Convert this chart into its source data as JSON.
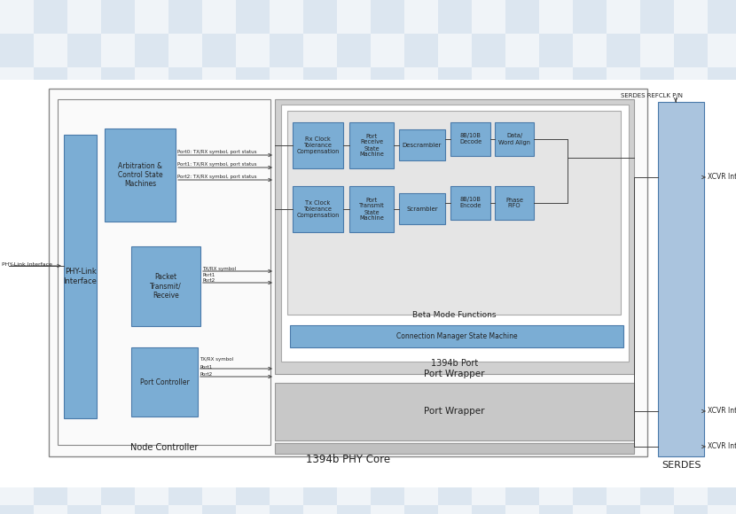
{
  "bg_checker_color1": "#dce6f0",
  "bg_checker_color2": "#f0f4f8",
  "box_blue_fill": "#7badd4",
  "box_blue_edge": "#4a7aaa",
  "box_light_blue_fill": "#b8d0e8",
  "box_gray_fill": "#d0d0d0",
  "box_gray2_fill": "#c8c8c8",
  "box_white_fill": "#ffffff",
  "serdes_fill": "#aac4de",
  "text_color": "#222222",
  "line_color": "#444444",
  "main_outer_label": "1394b PHY Core",
  "node_ctrl_label": "Node Controller",
  "phy_link_label": "PHY-Link\nInterface",
  "arb_label": "Arbitration &\nControl State\nMachines",
  "packet_label": "Packet\nTransmit/\nReceive",
  "port_ctrl_label": "Port Controller",
  "port_wrapper_label": "Port Wrapper",
  "beta_label": "Beta Mode Functions",
  "port_1394b_label": "1394b Port",
  "conn_mgr_label": "Connection Manager State Machine",
  "rx_clock_label": "Rx Clock\nTolerance\nCompensation",
  "port_receive_label": "Port\nReceive\nState\nMachine",
  "descrambler_label": "Descrambler",
  "bb10b_decode_label": "8B/10B\nDecode",
  "data_word_label": "Data/\nWord Align",
  "tx_clock_label": "Tx Clock\nTolerance\nCompensation",
  "port_transmit_label": "Port\nTransmit\nState\nMachine",
  "scrambler_label": "Scrambler",
  "bb10b_encode_label": "8B/10B\nEncode",
  "phase_fifo_label": "Phase\nFIFO",
  "serdes_label": "SERDES",
  "serdes_refclk_label": "SERDES REFCLK P/N",
  "xcvr1_label": "XCVR Interface",
  "xcvr2_label": "XCVR Interface",
  "xcvr3_label": "XCVR Interface",
  "phy_link_interface_label": "PHY-Link Interface",
  "port0_label": "Port0: TX/RX symbol, port status",
  "port1_label": "Port1: TX/RX symbol, port status",
  "port2_label": "Port2: TX/RX symbol, port status",
  "txrx_sym_label": "TX/RX symbol",
  "port1b_label": "Port1",
  "port2b_label": "Port2",
  "txrx_sym2_label": "TX/RX symbol",
  "port1c_label": "Port1",
  "port2c_label": "Port2"
}
